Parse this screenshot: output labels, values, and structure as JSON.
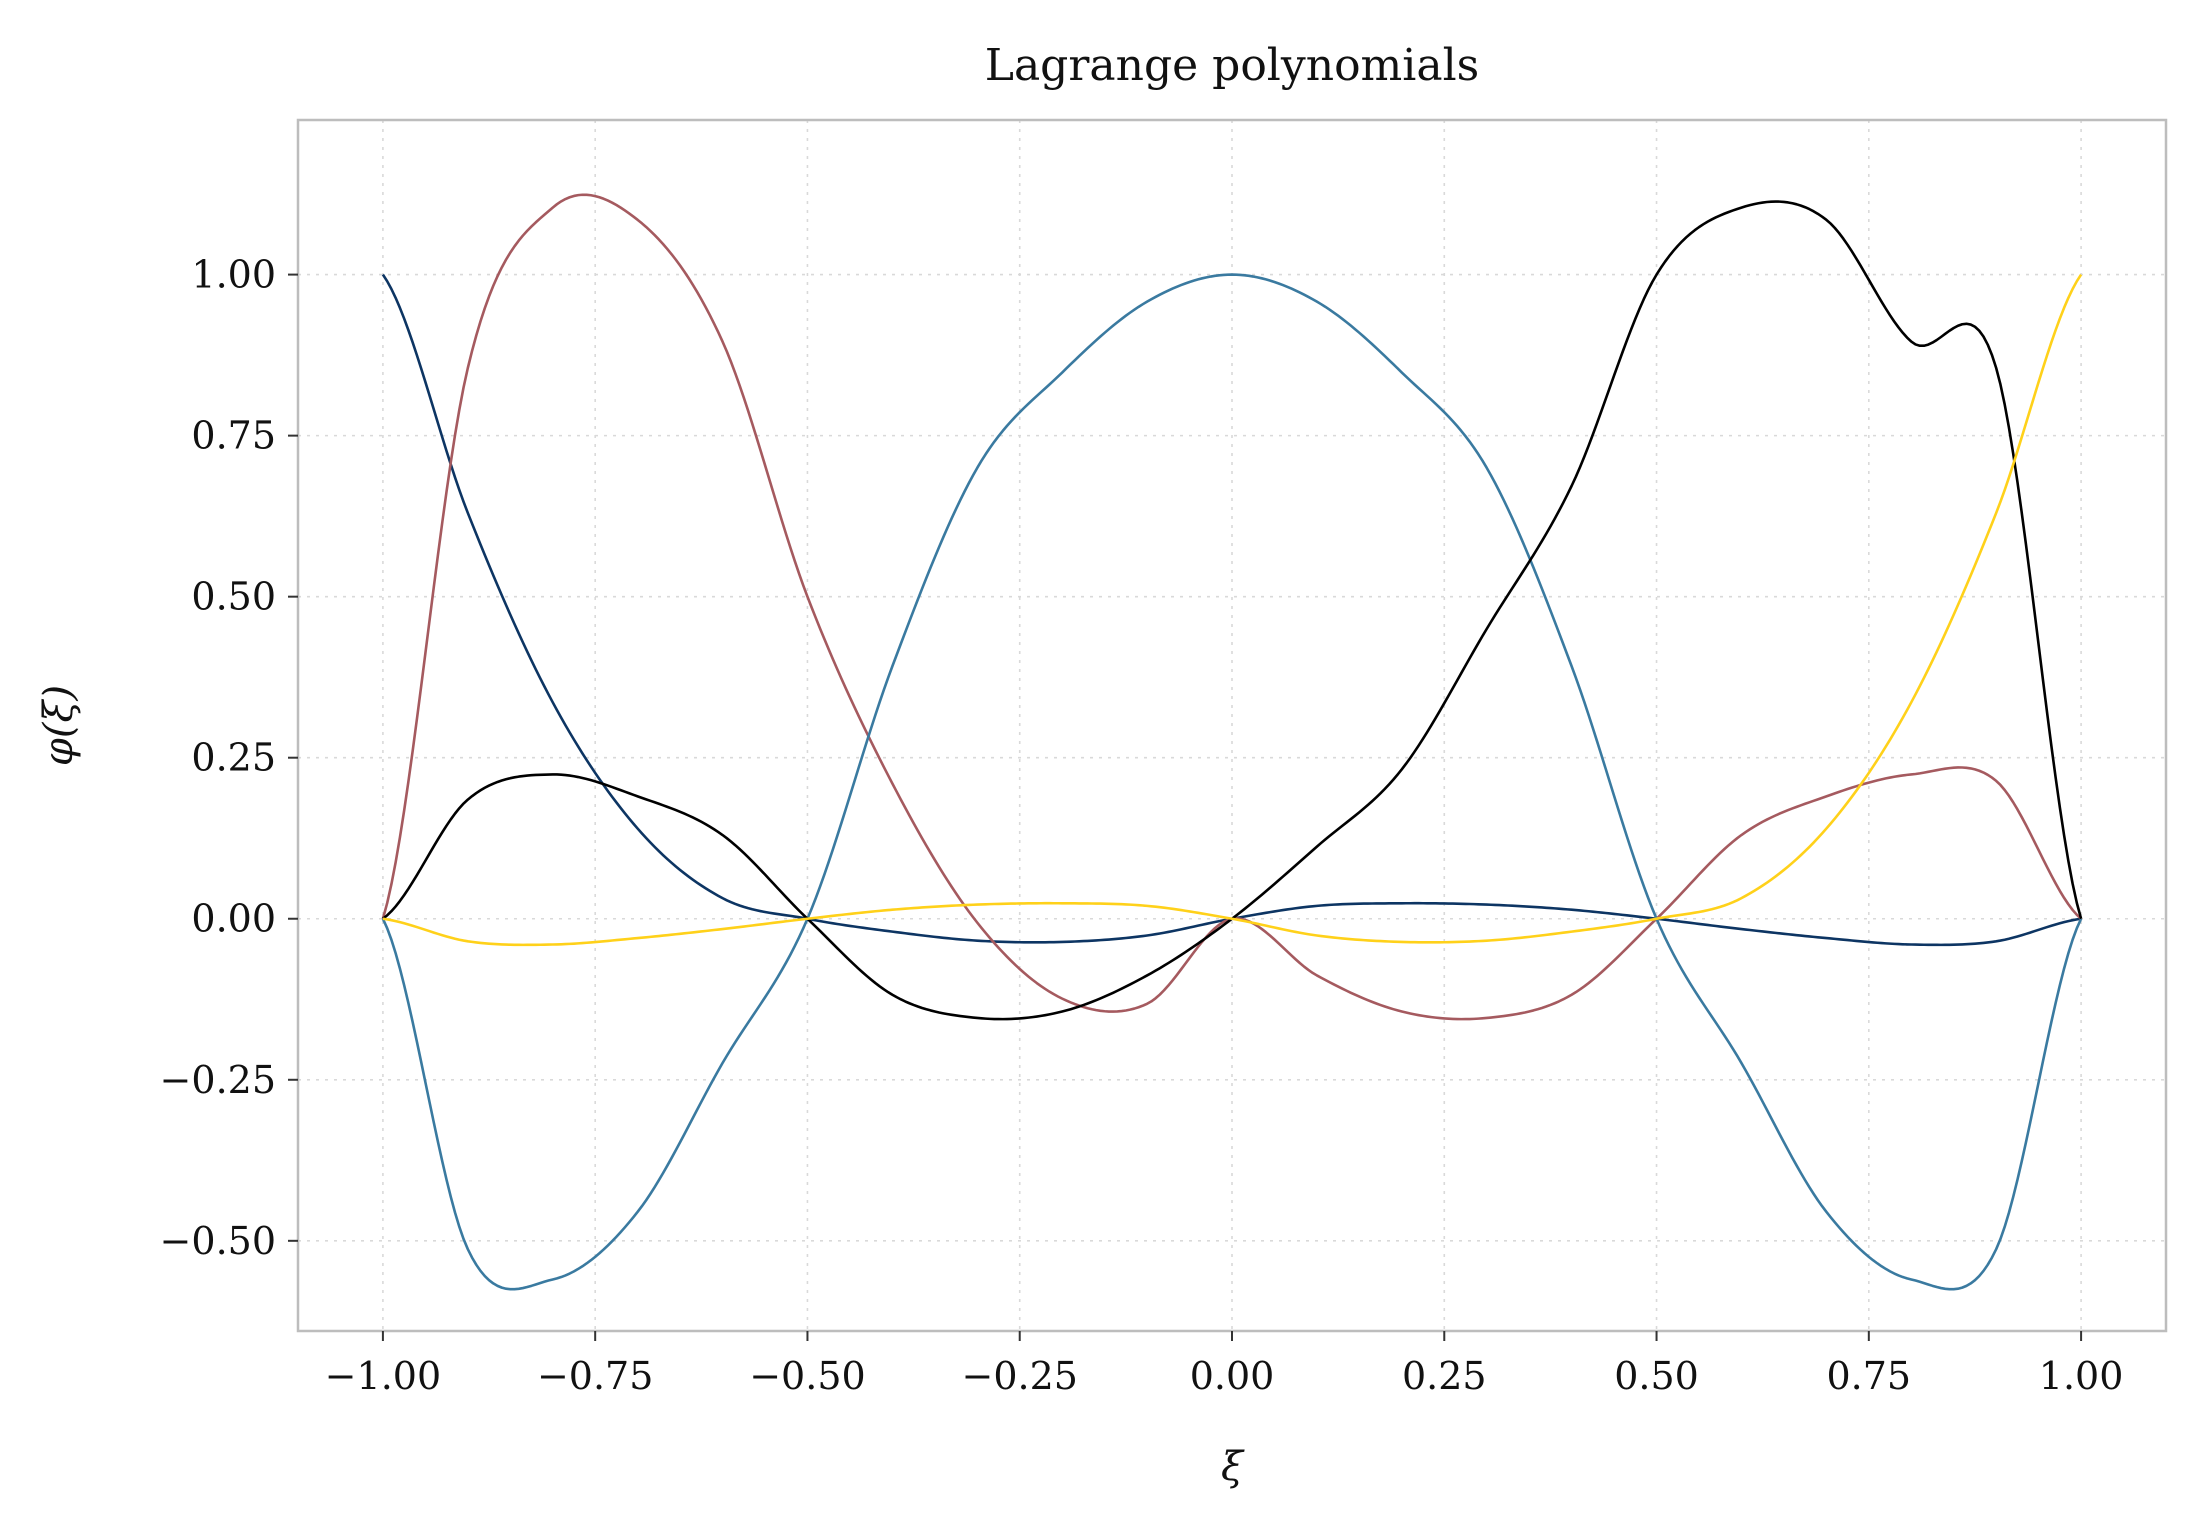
{
  "chart_data": {
    "type": "line",
    "title": "Lagrange polynomials",
    "xlabel": "ξ",
    "ylabel": "φ(ξ)",
    "xlim": [
      -1.1,
      1.1
    ],
    "ylim": [
      -0.64,
      1.24
    ],
    "xticks": [
      -1.0,
      -0.75,
      -0.5,
      -0.25,
      0.0,
      0.25,
      0.5,
      0.75,
      1.0
    ],
    "xtick_labels": [
      "−1.00",
      "−0.75",
      "−0.50",
      "−0.25",
      "0.00",
      "0.25",
      "0.50",
      "0.75",
      "1.00"
    ],
    "yticks": [
      -0.5,
      -0.25,
      0.0,
      0.25,
      0.5,
      0.75,
      1.0
    ],
    "ytick_labels": [
      "−0.50",
      "−0.25",
      "0.00",
      "0.25",
      "0.50",
      "0.75",
      "1.00"
    ],
    "grid": true,
    "nodes": [
      -1.0,
      -0.5,
      0.0,
      0.5,
      1.0
    ],
    "x": [
      -1.0,
      -0.9,
      -0.8,
      -0.7,
      -0.6,
      -0.5,
      -0.4,
      -0.3,
      -0.2,
      -0.1,
      0.0,
      0.1,
      0.2,
      0.3,
      0.4,
      0.5,
      0.6,
      0.7,
      0.8,
      0.9,
      1.0
    ],
    "series": [
      {
        "color": "#0d3563",
        "values": [
          1.0,
          0.63,
          0.336,
          0.14,
          0.032,
          0.0,
          -0.02,
          -0.034,
          -0.036,
          -0.026,
          0.0,
          0.02,
          0.024,
          0.022,
          0.014,
          0.0,
          -0.016,
          -0.03,
          -0.04,
          -0.035,
          0.0
        ]
      },
      {
        "color": "#a55a5f",
        "values": [
          0.0,
          0.855,
          1.104,
          1.085,
          0.896,
          0.5,
          0.21,
          -0.006,
          -0.124,
          -0.132,
          0.0,
          -0.088,
          -0.144,
          -0.154,
          -0.118,
          0.0,
          0.13,
          0.19,
          0.224,
          0.214,
          0.0
        ]
      },
      {
        "color": "#3a7aa0",
        "values": [
          0.0,
          -0.513,
          -0.56,
          -0.455,
          -0.224,
          0.0,
          0.392,
          0.7,
          0.848,
          0.958,
          1.0,
          0.958,
          0.848,
          0.7,
          0.392,
          0.0,
          -0.224,
          -0.455,
          -0.56,
          -0.513,
          0.0
        ]
      },
      {
        "color": "#000000",
        "values": [
          0.0,
          0.185,
          0.224,
          0.19,
          0.13,
          0.0,
          -0.118,
          -0.154,
          -0.144,
          -0.088,
          0.0,
          0.112,
          0.232,
          0.45,
          0.672,
          1.0,
          1.104,
          1.085,
          0.896,
          0.855,
          0.0
        ]
      },
      {
        "color": "#ffd11a",
        "values": [
          0.0,
          -0.035,
          -0.04,
          -0.03,
          -0.016,
          0.0,
          0.014,
          0.022,
          0.024,
          0.02,
          0.0,
          -0.026,
          -0.036,
          -0.034,
          -0.02,
          0.0,
          0.032,
          0.14,
          0.336,
          0.63,
          1.0
        ]
      }
    ]
  }
}
